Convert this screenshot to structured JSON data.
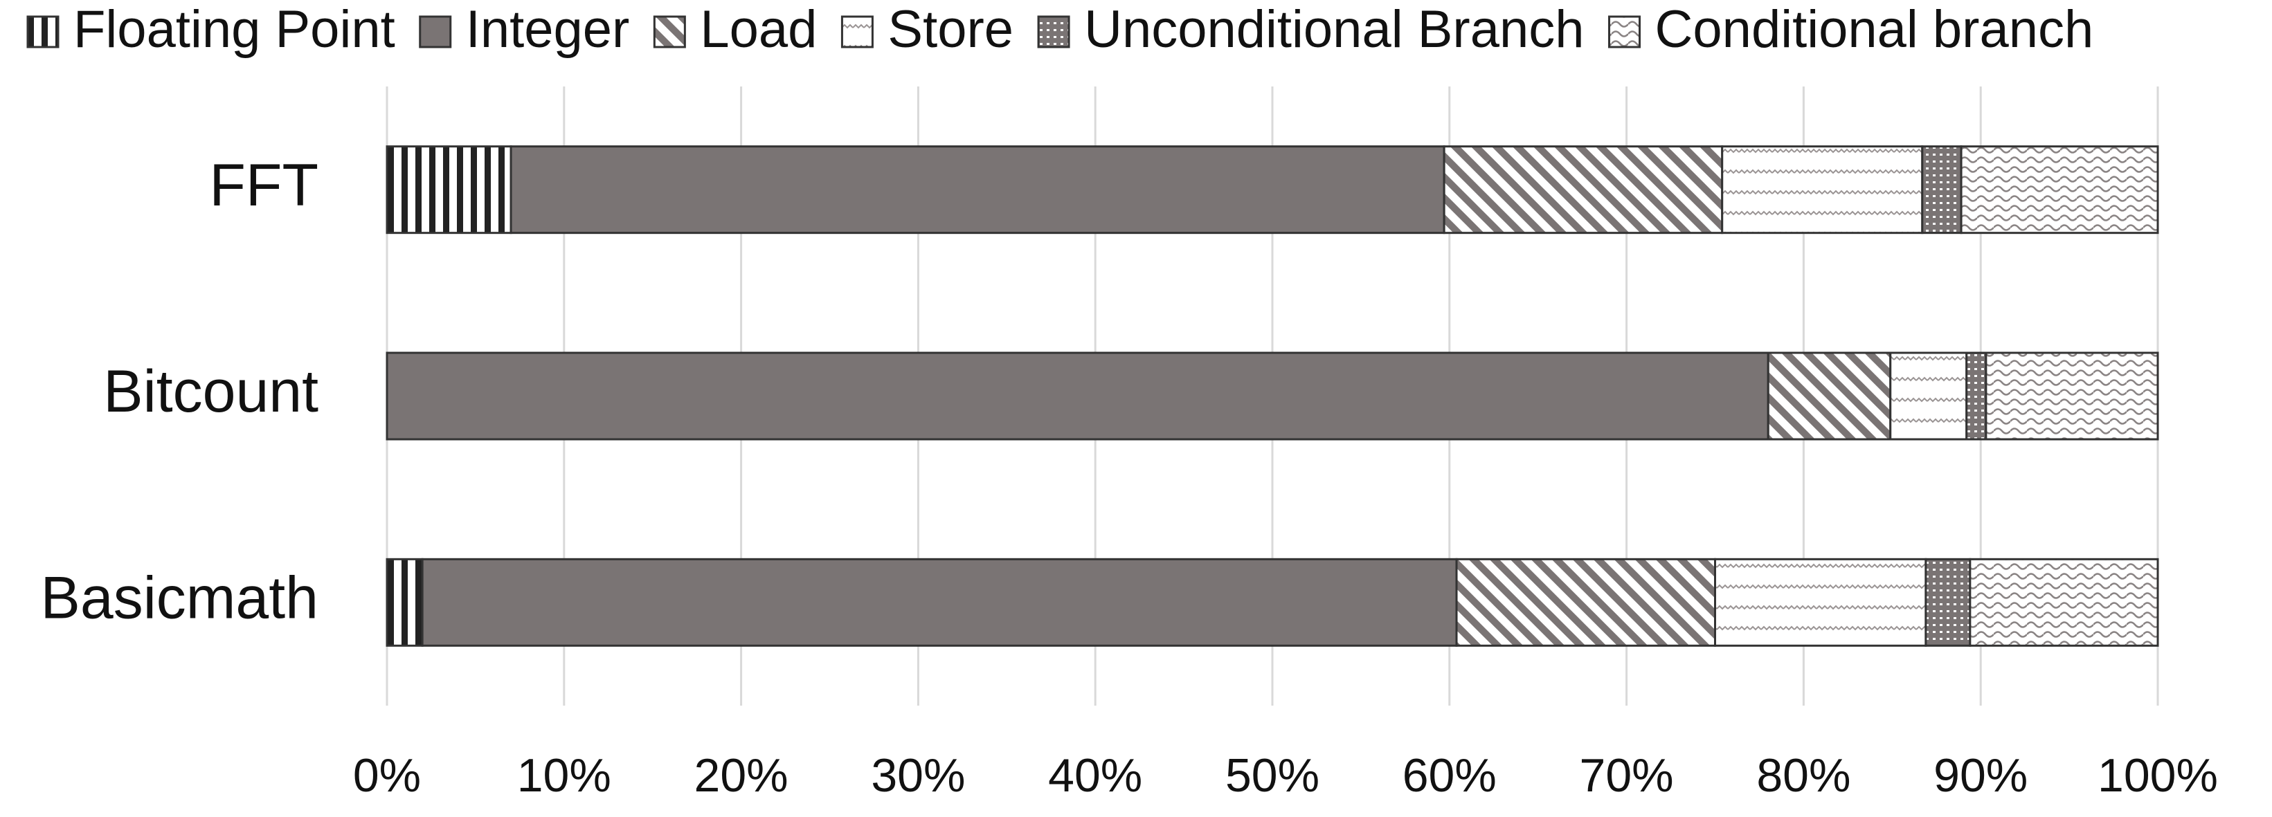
{
  "chart_data": {
    "type": "stacked-barh",
    "categories": [
      "FFT",
      "Bitcount",
      "Basicmath"
    ],
    "series": [
      {
        "name": "Floating Point",
        "color": "#222222",
        "pattern": "vertical",
        "values": [
          7.0,
          0,
          2.0
        ]
      },
      {
        "name": "Integer",
        "color": "#7a7474",
        "pattern": "solid",
        "values": [
          52.7,
          78.0,
          58.4
        ]
      },
      {
        "name": "Load",
        "color": "#7a7474",
        "pattern": "diagonal",
        "values": [
          15.7,
          6.9,
          14.6
        ]
      },
      {
        "name": "Store",
        "color": "#9a9494",
        "pattern": "dash",
        "values": [
          11.3,
          4.3,
          11.9
        ]
      },
      {
        "name": "Unconditional Branch",
        "color": "#7a7474",
        "pattern": "dots",
        "values": [
          2.2,
          1.1,
          2.5
        ]
      },
      {
        "name": "Conditional branch",
        "color": "#8a8484",
        "pattern": "wave",
        "values": [
          11.1,
          9.7,
          10.6
        ]
      }
    ],
    "xlim": [
      0,
      100
    ],
    "xticks": [
      {
        "value": 0,
        "label": "0%"
      },
      {
        "value": 10,
        "label": "10%"
      },
      {
        "value": 20,
        "label": "20%"
      },
      {
        "value": 30,
        "label": "30%"
      },
      {
        "value": 40,
        "label": "40%"
      },
      {
        "value": 50,
        "label": "50%"
      },
      {
        "value": 60,
        "label": "60%"
      },
      {
        "value": 70,
        "label": "70%"
      },
      {
        "value": 80,
        "label": "80%"
      },
      {
        "value": 90,
        "label": "90%"
      },
      {
        "value": 100,
        "label": "100%"
      }
    ],
    "grid": true,
    "legend": "top"
  }
}
